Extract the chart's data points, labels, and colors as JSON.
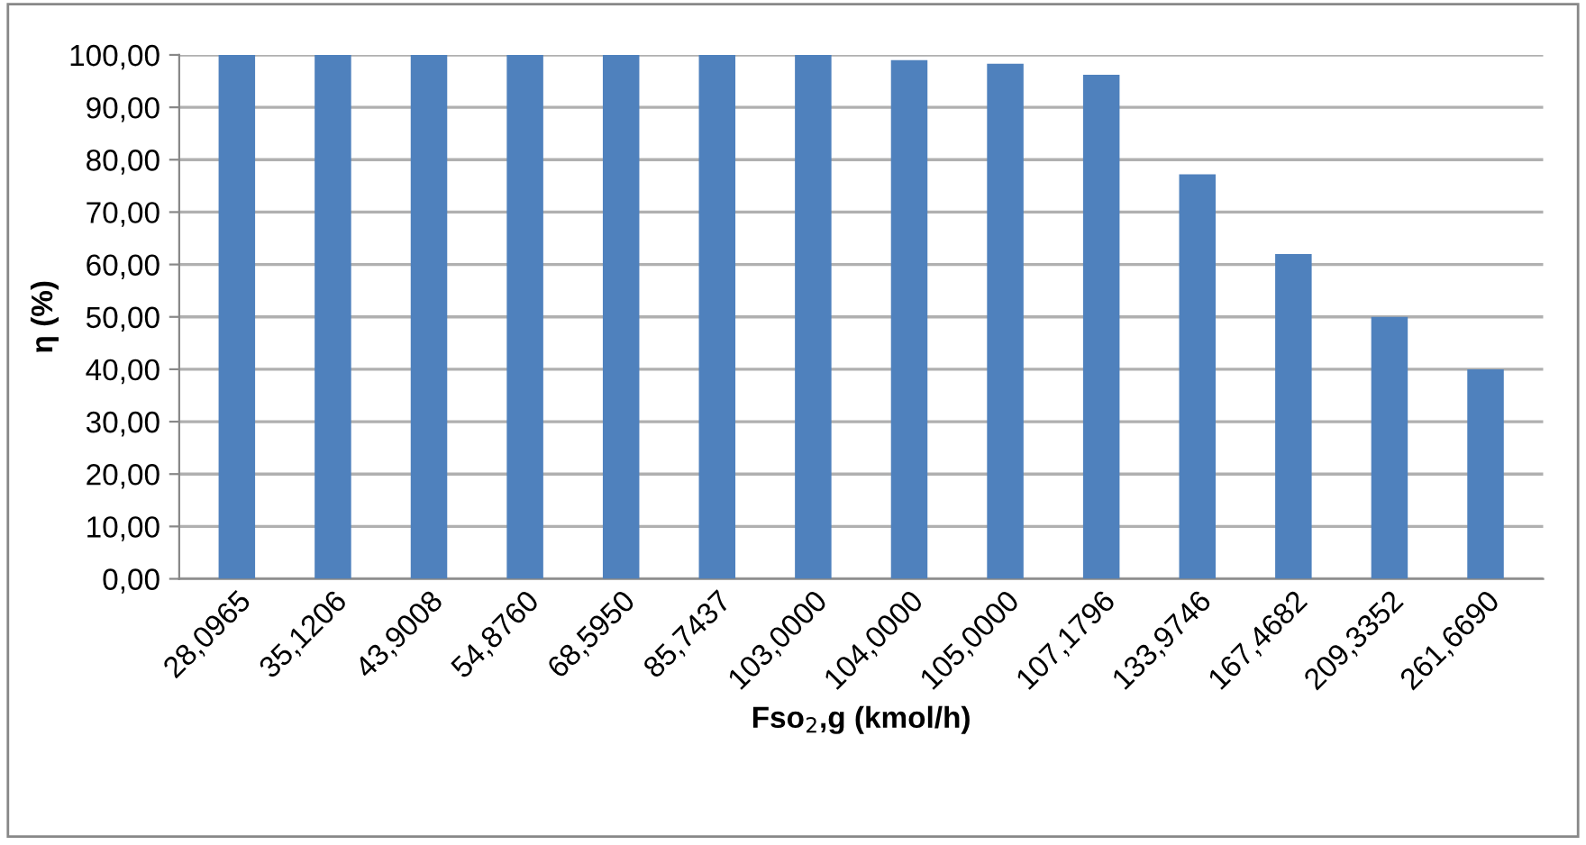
{
  "chart_data": {
    "type": "bar",
    "xlabel": "Fso$_{2}$,g (kmol/h)",
    "ylabel": "η (%)",
    "categories": [
      "28,0965",
      "35,1206",
      "43,9008",
      "54,8760",
      "68,5950",
      "85,7437",
      "103,0000",
      "104,0000",
      "105,0000",
      "107,1796",
      "133,9746",
      "167,4682",
      "209,3352",
      "261,6690"
    ],
    "values": [
      100,
      100,
      100,
      100,
      100,
      100,
      100,
      99.0,
      98.3,
      96.2,
      77.2,
      62.0,
      50.0,
      40.0
    ],
    "color": "#4f81bd",
    "ylim": [
      0,
      100
    ],
    "yticks": [
      {
        "value": 0,
        "label": "0,00"
      },
      {
        "value": 10,
        "label": "10,00"
      },
      {
        "value": 20,
        "label": "20,00"
      },
      {
        "value": 30,
        "label": "30,00"
      },
      {
        "value": 40,
        "label": "40,00"
      },
      {
        "value": 50,
        "label": "50,00"
      },
      {
        "value": 60,
        "label": "60,00"
      },
      {
        "value": 70,
        "label": "70,00"
      },
      {
        "value": 80,
        "label": "80,00"
      },
      {
        "value": 90,
        "label": "90,00"
      },
      {
        "value": 100,
        "label": "100,00"
      }
    ],
    "grid": "y"
  }
}
